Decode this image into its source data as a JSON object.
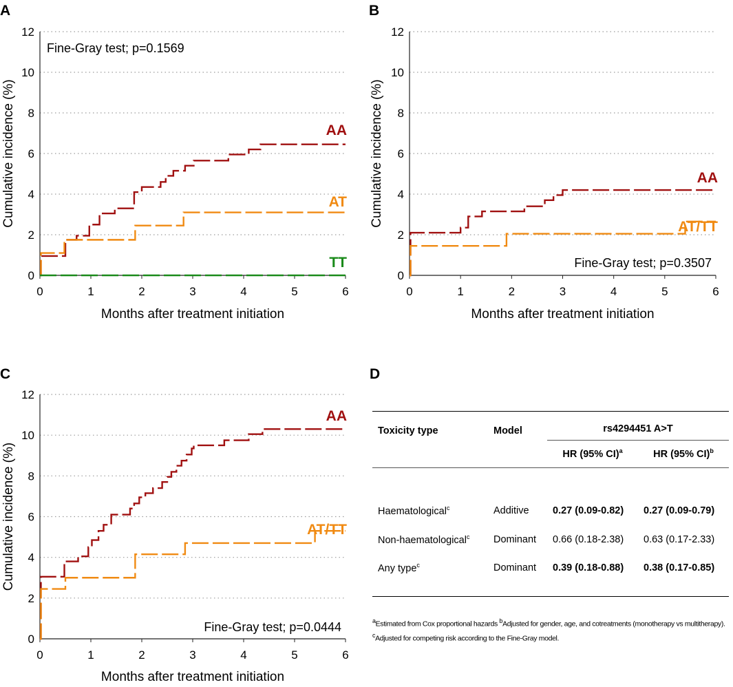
{
  "colors": {
    "AA": "#a01010",
    "AT": "#f08a12",
    "TT": "#1a8a1a"
  },
  "chart_data": [
    {
      "panel": "A",
      "type": "line",
      "subtype": "step-cumulative-incidence",
      "xlabel": "Months after treatment initiation",
      "ylabel": "Cumulative incidence (%)",
      "xlim": [
        0,
        6
      ],
      "ylim": [
        0,
        12
      ],
      "xticks": [
        0,
        1,
        2,
        3,
        4,
        5,
        6
      ],
      "yticks": [
        0,
        2,
        4,
        6,
        8,
        10,
        12
      ],
      "grid": "horizontal dotted",
      "annotation": "Fine-Gray test; p=0.1569",
      "annotation_position": "top-left",
      "series": [
        {
          "name": "AA",
          "color_key": "AA",
          "steps": [
            [
              0,
              0
            ],
            [
              0.02,
              0.95
            ],
            [
              0.48,
              0.95
            ],
            [
              0.5,
              1.75
            ],
            [
              0.7,
              1.75
            ],
            [
              0.72,
              1.95
            ],
            [
              0.95,
              1.95
            ],
            [
              0.97,
              2.5
            ],
            [
              1.15,
              2.5
            ],
            [
              1.17,
              3.05
            ],
            [
              1.45,
              3.05
            ],
            [
              1.47,
              3.3
            ],
            [
              1.82,
              3.3
            ],
            [
              1.85,
              4.1
            ],
            [
              1.97,
              4.1
            ],
            [
              2.0,
              4.35
            ],
            [
              2.35,
              4.35
            ],
            [
              2.37,
              4.6
            ],
            [
              2.45,
              4.6
            ],
            [
              2.47,
              4.9
            ],
            [
              2.6,
              4.9
            ],
            [
              2.62,
              5.15
            ],
            [
              2.82,
              5.15
            ],
            [
              2.85,
              5.4
            ],
            [
              3.0,
              5.4
            ],
            [
              3.02,
              5.65
            ],
            [
              3.67,
              5.65
            ],
            [
              3.7,
              5.95
            ],
            [
              4.07,
              5.95
            ],
            [
              4.1,
              6.2
            ],
            [
              4.3,
              6.2
            ],
            [
              4.33,
              6.45
            ],
            [
              6.0,
              6.45
            ]
          ]
        },
        {
          "name": "AT",
          "color_key": "AT",
          "steps": [
            [
              0,
              0
            ],
            [
              0.02,
              1.1
            ],
            [
              0.46,
              1.1
            ],
            [
              0.48,
              1.75
            ],
            [
              1.85,
              1.75
            ],
            [
              1.87,
              2.45
            ],
            [
              2.8,
              2.45
            ],
            [
              2.82,
              3.1
            ],
            [
              6.0,
              3.1
            ]
          ]
        },
        {
          "name": "TT",
          "color_key": "TT",
          "steps": [
            [
              0,
              0
            ],
            [
              6.0,
              0
            ]
          ]
        }
      ]
    },
    {
      "panel": "B",
      "type": "line",
      "subtype": "step-cumulative-incidence",
      "xlabel": "Months after treatment initiation",
      "ylabel": "Cumulative incidence (%)",
      "xlim": [
        0,
        6
      ],
      "ylim": [
        0,
        12
      ],
      "xticks": [
        0,
        1,
        2,
        3,
        4,
        5,
        6
      ],
      "yticks": [
        0,
        2,
        4,
        6,
        8,
        10,
        12
      ],
      "grid": "horizontal dotted",
      "annotation": "Fine-Gray test; p=0.3507",
      "annotation_position": "bottom-right",
      "series": [
        {
          "name": "AA",
          "color_key": "AA",
          "steps": [
            [
              0,
              0
            ],
            [
              0.02,
              2.1
            ],
            [
              0.97,
              2.1
            ],
            [
              1.0,
              2.35
            ],
            [
              1.12,
              2.35
            ],
            [
              1.15,
              2.9
            ],
            [
              1.4,
              2.9
            ],
            [
              1.42,
              3.15
            ],
            [
              2.22,
              3.15
            ],
            [
              2.25,
              3.4
            ],
            [
              2.62,
              3.4
            ],
            [
              2.65,
              3.7
            ],
            [
              2.8,
              3.7
            ],
            [
              2.82,
              3.95
            ],
            [
              2.97,
              3.95
            ],
            [
              3.0,
              4.2
            ],
            [
              6.0,
              4.2
            ]
          ]
        },
        {
          "name": "AT/TT",
          "color_key": "AT",
          "steps": [
            [
              0,
              0
            ],
            [
              0.02,
              1.45
            ],
            [
              1.87,
              1.45
            ],
            [
              1.9,
              2.05
            ],
            [
              5.37,
              2.05
            ],
            [
              5.4,
              2.65
            ],
            [
              6.0,
              2.65
            ]
          ]
        }
      ]
    },
    {
      "panel": "C",
      "type": "line",
      "subtype": "step-cumulative-incidence",
      "xlabel": "Months after treatment initiation",
      "ylabel": "Cumulative incidence (%)",
      "xlim": [
        0,
        6
      ],
      "ylim": [
        0,
        12
      ],
      "xticks": [
        0,
        1,
        2,
        3,
        4,
        5,
        6
      ],
      "yticks": [
        0,
        2,
        4,
        6,
        8,
        10,
        12
      ],
      "grid": "horizontal dotted",
      "annotation": "Fine-Gray test; p=0.0444",
      "annotation_position": "bottom-right",
      "series": [
        {
          "name": "AA",
          "color_key": "AA",
          "steps": [
            [
              0,
              0
            ],
            [
              0.02,
              3.05
            ],
            [
              0.45,
              3.05
            ],
            [
              0.48,
              3.8
            ],
            [
              0.72,
              3.8
            ],
            [
              0.75,
              4.05
            ],
            [
              0.92,
              4.05
            ],
            [
              0.95,
              4.5
            ],
            [
              1.0,
              4.5
            ],
            [
              1.02,
              4.85
            ],
            [
              1.12,
              4.85
            ],
            [
              1.15,
              5.3
            ],
            [
              1.22,
              5.3
            ],
            [
              1.25,
              5.6
            ],
            [
              1.37,
              5.6
            ],
            [
              1.4,
              6.1
            ],
            [
              1.75,
              6.1
            ],
            [
              1.77,
              6.4
            ],
            [
              1.82,
              6.4
            ],
            [
              1.85,
              6.65
            ],
            [
              1.92,
              6.65
            ],
            [
              1.95,
              6.95
            ],
            [
              2.05,
              6.95
            ],
            [
              2.07,
              7.15
            ],
            [
              2.2,
              7.15
            ],
            [
              2.22,
              7.4
            ],
            [
              2.37,
              7.4
            ],
            [
              2.4,
              7.7
            ],
            [
              2.47,
              7.7
            ],
            [
              2.5,
              7.95
            ],
            [
              2.55,
              7.95
            ],
            [
              2.58,
              8.2
            ],
            [
              2.65,
              8.2
            ],
            [
              2.68,
              8.5
            ],
            [
              2.75,
              8.5
            ],
            [
              2.78,
              8.75
            ],
            [
              2.85,
              8.75
            ],
            [
              2.88,
              9.05
            ],
            [
              2.95,
              9.05
            ],
            [
              2.98,
              9.35
            ],
            [
              3.0,
              9.35
            ],
            [
              3.02,
              9.5
            ],
            [
              3.6,
              9.5
            ],
            [
              3.62,
              9.75
            ],
            [
              4.07,
              9.75
            ],
            [
              4.1,
              10.05
            ],
            [
              4.35,
              10.05
            ],
            [
              4.37,
              10.3
            ],
            [
              6.0,
              10.3
            ]
          ]
        },
        {
          "name": "AT/TT",
          "color_key": "AT",
          "steps": [
            [
              0,
              0
            ],
            [
              0.02,
              2.45
            ],
            [
              0.47,
              2.45
            ],
            [
              0.5,
              3.0
            ],
            [
              1.85,
              3.0
            ],
            [
              1.87,
              4.15
            ],
            [
              2.82,
              4.15
            ],
            [
              2.85,
              4.7
            ],
            [
              5.37,
              4.7
            ],
            [
              5.4,
              5.3
            ],
            [
              6.0,
              5.3
            ]
          ]
        }
      ]
    },
    {
      "panel": "D",
      "type": "table",
      "headers": {
        "toxicity_type": "Toxicity type",
        "model": "Model",
        "snp": "rs4294451 A>T",
        "hr_a": "HR (95% CI)",
        "hr_a_sup": "a",
        "hr_b": "HR (95% CI)",
        "hr_b_sup": "b"
      },
      "rows": [
        {
          "type": "Haematological",
          "sup": "c",
          "model": "Additive",
          "hr_a": "0.27 (0.09-0.82)",
          "hr_b": "0.27 (0.09-0.79)",
          "bold": true
        },
        {
          "type": "Non-haematological",
          "sup": "c",
          "model": "Dominant",
          "hr_a": "0.66 (0.18-2.38)",
          "hr_b": "0.63 (0.17-2.33)",
          "bold": false
        },
        {
          "type": "Any type",
          "sup": "c",
          "model": "Dominant",
          "hr_a": "0.39 (0.18-0.88)",
          "hr_b": "0.38 (0.17-0.85)",
          "bold": true
        }
      ],
      "footnote": {
        "a_mark": "a",
        "a_text": "Estimated from Cox proportional hazards ",
        "b_mark": "b",
        "b_text": "Adjusted for gender, age, and cotreatments (monotherapy vs multitherapy). ",
        "c_mark": "c",
        "c_text": "Adjusted for competing risk according to the Fine-Gray model."
      }
    }
  ]
}
